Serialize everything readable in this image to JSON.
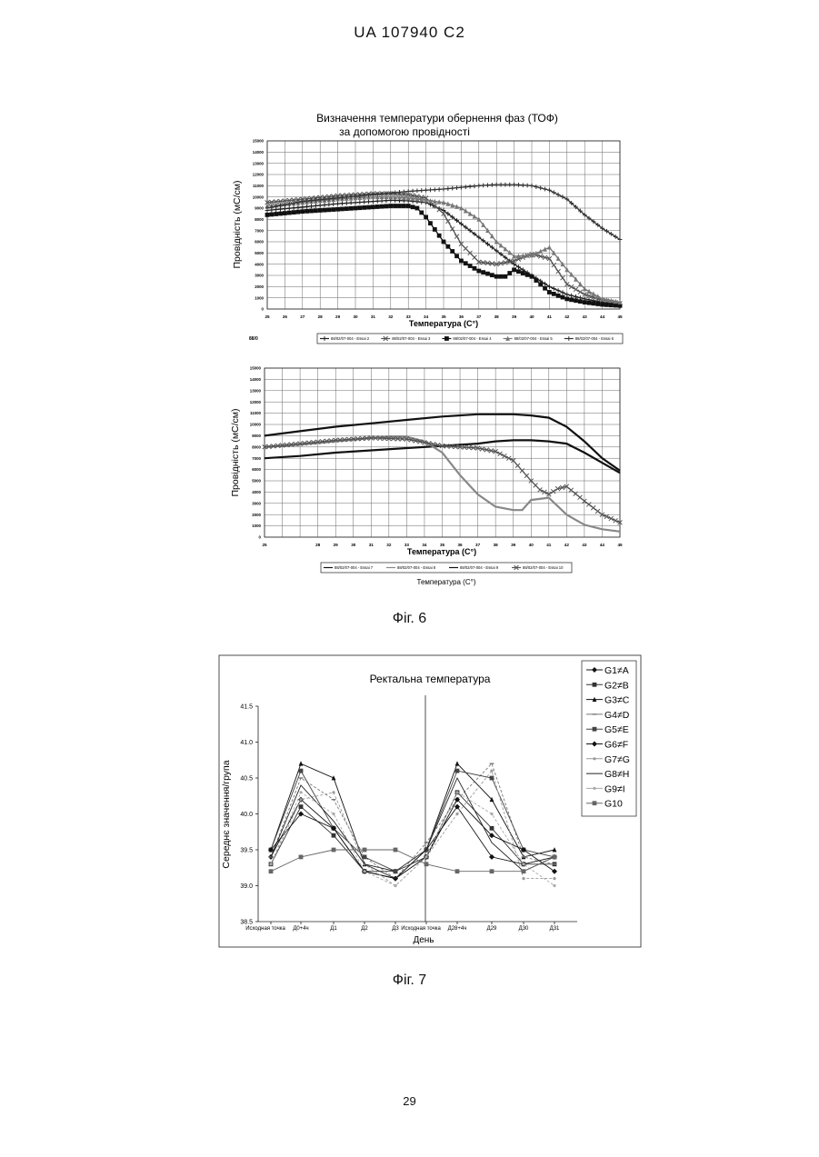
{
  "page": {
    "header": "UA   107940   C2",
    "fig6_label": "Фіг. 6",
    "fig7_label": "Фіг. 7",
    "page_number": "29"
  },
  "chart_data": [
    {
      "id": "fig6a",
      "type": "line",
      "title": "Визначення температури обернення фаз (ТОФ)",
      "subtitle": "за допомогою провідності",
      "xlabel": "Температура (С°)",
      "ylabel": "Провідність (мС/см)",
      "xlim": [
        25,
        45
      ],
      "ylim": [
        0,
        15000
      ],
      "xticks": [
        "25",
        "26",
        "27",
        "28",
        "29",
        "30",
        "31",
        "32",
        "33",
        "34",
        "35",
        "36",
        "37",
        "38",
        "39",
        "40",
        "41",
        "42",
        "43",
        "44",
        "45"
      ],
      "yticks": [
        "0",
        "1000",
        "2000",
        "3000",
        "4000",
        "5000",
        "6000",
        "7000",
        "8000",
        "9000",
        "10000",
        "11000",
        "12000",
        "13000",
        "14000",
        "15000"
      ],
      "grid": true,
      "legend": "bottom",
      "legend_left_fragment": "88/0",
      "series": [
        {
          "name": "88/02/07-004 - Essai 2",
          "color": "#222222",
          "marker": "plus",
          "x": [
            25,
            27,
            29,
            31,
            32,
            33,
            34,
            35,
            36,
            37,
            38,
            39,
            40,
            41,
            42,
            43,
            44,
            45
          ],
          "y": [
            8800,
            9100,
            9400,
            9600,
            9700,
            9650,
            9500,
            8800,
            7600,
            6400,
            5200,
            4000,
            3000,
            2000,
            1300,
            900,
            600,
            400
          ]
        },
        {
          "name": "88/02/07-004 - Essai 3",
          "color": "#555555",
          "marker": "x",
          "x": [
            25,
            27,
            29,
            31,
            32,
            33,
            34,
            35,
            36,
            37,
            38,
            39,
            40,
            41,
            42,
            43,
            44,
            45
          ],
          "y": [
            9500,
            9800,
            10100,
            10300,
            10300,
            10200,
            9900,
            8500,
            5800,
            4200,
            4000,
            4300,
            4900,
            4500,
            2200,
            1300,
            800,
            500
          ]
        },
        {
          "name": "88/02/07-004 - Essai 4",
          "color": "#111111",
          "marker": "square",
          "x": [
            25,
            27,
            29,
            31,
            32,
            33,
            33.5,
            34,
            35,
            36,
            37,
            38,
            38.5,
            39,
            40,
            41,
            42,
            43,
            44,
            45
          ],
          "y": [
            8400,
            8700,
            8900,
            9100,
            9200,
            9200,
            9000,
            8200,
            6000,
            4300,
            3400,
            2900,
            2900,
            3500,
            2900,
            1500,
            900,
            600,
            400,
            300
          ]
        },
        {
          "name": "88/02/07-004 - Essai 5",
          "color": "#777777",
          "marker": "tri",
          "x": [
            25,
            27,
            29,
            31,
            32,
            33,
            34,
            35,
            36,
            37,
            38,
            39,
            40,
            41,
            42,
            43,
            44,
            45
          ],
          "y": [
            9200,
            9500,
            9800,
            10000,
            10000,
            9900,
            9700,
            9500,
            9000,
            8000,
            6000,
            4700,
            4800,
            5500,
            3500,
            1800,
            900,
            600
          ]
        },
        {
          "name": "88/02/07-004 - Essai 6",
          "color": "#333333",
          "marker": "plus",
          "x": [
            25,
            27,
            29,
            31,
            33,
            35,
            37,
            38,
            39,
            40,
            41,
            42,
            43,
            44,
            45
          ],
          "y": [
            9000,
            9600,
            9900,
            10200,
            10500,
            10700,
            11000,
            11100,
            11100,
            11000,
            10600,
            9800,
            8400,
            7200,
            6200
          ]
        }
      ]
    },
    {
      "id": "fig6b",
      "type": "line",
      "title": "",
      "subtitle": "",
      "xlabel": "Температура (С°)",
      "ylabel": "Провідність (мС/см)",
      "xlim": [
        25,
        45
      ],
      "ylim": [
        0,
        15000
      ],
      "xticks": [
        "25",
        "",
        "",
        "28",
        "29",
        "30",
        "31",
        "32",
        "33",
        "34",
        "35",
        "36",
        "37",
        "38",
        "39",
        "40",
        "41",
        "42",
        "43",
        "44",
        "45"
      ],
      "yticks": [
        "0",
        "1000",
        "2000",
        "3000",
        "4000",
        "5000",
        "6000",
        "7000",
        "8000",
        "9000",
        "10000",
        "11000",
        "12000",
        "13000",
        "14000",
        "15000"
      ],
      "grid": true,
      "legend": "bottom",
      "below_legend_text": "Температура (С°)",
      "series": [
        {
          "name": "88/02/07-004 - Essai 7",
          "color": "#111111",
          "marker": "none",
          "x": [
            25,
            27,
            29,
            31,
            33,
            35,
            37,
            38,
            39,
            40,
            41,
            42,
            43,
            44,
            45
          ],
          "y": [
            7000,
            7200,
            7500,
            7700,
            7900,
            8100,
            8300,
            8500,
            8600,
            8600,
            8500,
            8300,
            7500,
            6600,
            5700
          ]
        },
        {
          "name": "88/02/07-004 - Essai 8",
          "color": "#888888",
          "marker": "none",
          "x": [
            25,
            27,
            29,
            31,
            32,
            33,
            34,
            35,
            36,
            37,
            38,
            39,
            39.5,
            40,
            41,
            42,
            43,
            44,
            45
          ],
          "y": [
            8000,
            8200,
            8500,
            8800,
            8900,
            8900,
            8500,
            7500,
            5500,
            3800,
            2700,
            2400,
            2400,
            3300,
            3500,
            2000,
            1100,
            700,
            500
          ]
        },
        {
          "name": "88/02/07-004 - Essai 9",
          "color": "#111111",
          "marker": "none",
          "x": [
            25,
            27,
            29,
            31,
            33,
            35,
            37,
            38,
            39,
            40,
            41,
            42,
            43,
            44,
            45
          ],
          "y": [
            9000,
            9400,
            9800,
            10100,
            10400,
            10700,
            10900,
            10900,
            10900,
            10800,
            10600,
            9800,
            8500,
            7000,
            5900
          ]
        },
        {
          "name": "88/02/07-004 - Essai 10",
          "color": "#555555",
          "marker": "x",
          "x": [
            25,
            27,
            29,
            31,
            33,
            34,
            35,
            36,
            37,
            38,
            39,
            40,
            40.5,
            41,
            41.5,
            42,
            43,
            44,
            45
          ],
          "y": [
            8000,
            8300,
            8600,
            8800,
            8700,
            8400,
            8100,
            8000,
            7900,
            7600,
            6800,
            5000,
            4200,
            3800,
            4300,
            4500,
            3200,
            2000,
            1300
          ]
        }
      ]
    },
    {
      "id": "fig7",
      "type": "line",
      "title": "Ректальна температура",
      "xlabel": "День",
      "ylabel": "Середнє значення/група",
      "categories": [
        "Исходная точка",
        "Д0+4ч",
        "Д1",
        "Д2",
        "Д3",
        "Исходная точка",
        "Д28+4ч",
        "Д29",
        "Д30",
        "Д31"
      ],
      "ylim": [
        38.5,
        41.5
      ],
      "yticks": [
        "38.5",
        "39.0",
        "39.5",
        "40.0",
        "40.5",
        "41.0",
        "41.5"
      ],
      "grid": false,
      "legend": "right",
      "series": [
        {
          "name": "G1≠A",
          "color": "#111111",
          "marker": "diamond",
          "values": [
            39.4,
            40.2,
            39.8,
            39.2,
            39.1,
            39.5,
            40.1,
            39.4,
            39.3,
            39.4
          ]
        },
        {
          "name": "G2≠B",
          "color": "#333333",
          "marker": "square",
          "values": [
            39.3,
            40.1,
            39.7,
            39.2,
            39.2,
            39.4,
            40.3,
            39.8,
            39.3,
            39.3
          ]
        },
        {
          "name": "G3≠C",
          "color": "#111111",
          "marker": "triangle",
          "values": [
            39.5,
            40.7,
            40.5,
            39.3,
            39.2,
            39.5,
            40.7,
            40.2,
            39.4,
            39.5
          ]
        },
        {
          "name": "G4≠D",
          "color": "#777777",
          "marker": "dash",
          "values": [
            39.4,
            40.5,
            40.2,
            39.4,
            39.1,
            39.6,
            40.2,
            40.7,
            39.4,
            39.3
          ]
        },
        {
          "name": "G5≠E",
          "color": "#444444",
          "marker": "square",
          "values": [
            39.5,
            40.6,
            39.8,
            39.4,
            39.2,
            39.5,
            40.6,
            40.5,
            39.5,
            39.4
          ]
        },
        {
          "name": "G6≠F",
          "color": "#111111",
          "marker": "diamond",
          "values": [
            39.5,
            40.0,
            39.8,
            39.2,
            39.1,
            39.4,
            40.2,
            39.7,
            39.5,
            39.2
          ]
        },
        {
          "name": "G7≠G",
          "color": "#999999",
          "marker": "dot",
          "values": [
            39.3,
            40.2,
            40.3,
            39.3,
            39.0,
            39.4,
            40.0,
            40.6,
            39.1,
            39.1
          ]
        },
        {
          "name": "G8≠H",
          "color": "#222222",
          "marker": "none",
          "values": [
            39.4,
            40.4,
            39.9,
            39.3,
            39.1,
            39.5,
            40.5,
            39.6,
            39.2,
            39.4
          ]
        },
        {
          "name": "G9≠I",
          "color": "#aaaaaa",
          "marker": "dot",
          "values": [
            39.3,
            40.3,
            40.0,
            39.2,
            39.0,
            39.4,
            40.3,
            40.0,
            39.3,
            39.0
          ]
        },
        {
          "name": "G10",
          "color": "#666666",
          "marker": "square",
          "values": [
            39.2,
            39.4,
            39.5,
            39.5,
            39.5,
            39.3,
            39.2,
            39.2,
            39.2,
            39.4
          ]
        }
      ]
    }
  ]
}
